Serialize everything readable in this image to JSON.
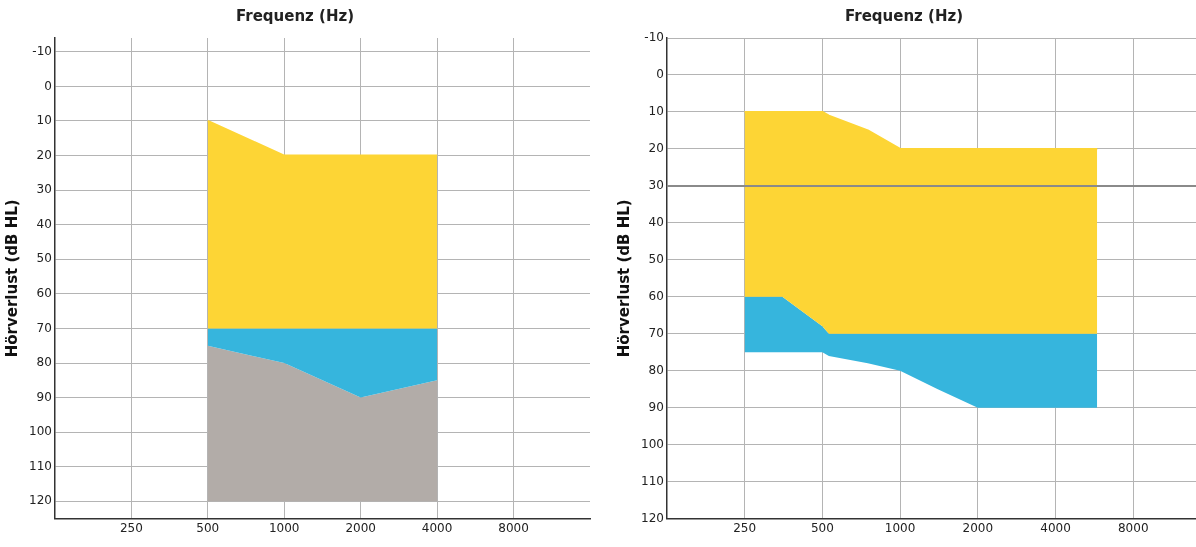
{
  "chart_data": [
    {
      "type": "area",
      "xlabel": "Frequenz (Hz)",
      "ylabel": "Hörverlust (dB HL)",
      "log": "x",
      "grid": true,
      "xlim": [
        125,
        16000
      ],
      "xticks": [
        250,
        500,
        1000,
        2000,
        4000,
        8000
      ],
      "ylim": [
        125,
        -14
      ],
      "yticks": [
        -10,
        0,
        10,
        20,
        30,
        40,
        50,
        60,
        70,
        80,
        90,
        100,
        110,
        120
      ],
      "series": [
        {
          "type": "line",
          "color": "#fdd535",
          "x": [
            500,
            1000,
            2000,
            4000
          ],
          "values": [
            10,
            20,
            20,
            20
          ]
        },
        {
          "color": "#fdd535",
          "x": [
            500,
            1000,
            2000,
            4000
          ],
          "values": [
            70,
            70,
            70,
            70
          ]
        },
        {
          "color": "#36b5dd",
          "x": [
            500,
            1000,
            2000,
            4000
          ],
          "values": [
            75,
            80,
            90,
            85
          ]
        },
        {
          "color": "#b2aca8",
          "x": [
            500,
            1000,
            2000,
            4000
          ],
          "values": [
            120,
            120,
            120,
            120
          ]
        }
      ]
    },
    {
      "type": "area",
      "xlabel": "Frequenz (Hz)",
      "ylabel": "Hörverlust (dB HL)",
      "log": "x",
      "grid": true,
      "xlim": [
        125,
        14000
      ],
      "xticks": [
        250,
        500,
        1000,
        2000,
        4000,
        8000
      ],
      "ylim": [
        120,
        -10
      ],
      "yticks": [
        -10,
        0,
        10,
        20,
        30,
        40,
        50,
        60,
        70,
        80,
        90,
        100,
        110,
        120
      ],
      "ref_lines": [
        {
          "axis": "y",
          "value": 30,
          "color": "#8a8a8a"
        }
      ],
      "series": [
        {
          "type": "line",
          "color": "#fdd535",
          "x": [
            250,
            350,
            500,
            530,
            750,
            1000,
            1400,
            2000,
            5800
          ],
          "values": [
            10,
            10,
            10,
            11,
            15,
            20,
            20,
            20,
            20
          ]
        },
        {
          "color": "#fdd535",
          "x": [
            250,
            350,
            500,
            530,
            750,
            1000,
            1400,
            2000,
            5800
          ],
          "values": [
            60,
            60,
            68,
            70,
            70,
            70,
            70,
            70,
            70
          ]
        },
        {
          "color": "#36b5dd",
          "x": [
            250,
            350,
            500,
            530,
            750,
            1000,
            1400,
            2000,
            5800
          ],
          "values": [
            75,
            75,
            75,
            76,
            78,
            80,
            85,
            90,
            90
          ]
        }
      ]
    }
  ]
}
